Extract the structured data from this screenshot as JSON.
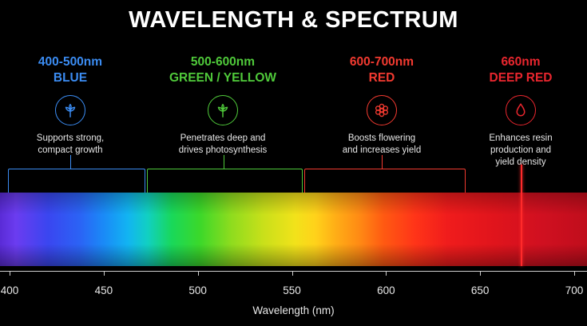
{
  "title": "WAVELENGTH & SPECTRUM",
  "bands": [
    {
      "range": "400-500nm",
      "name": "BLUE",
      "color": "#3b8cf2",
      "icon": "leaf-icon",
      "desc_line1": "Supports strong,",
      "desc_line2": "compact growth",
      "desc_line3": ""
    },
    {
      "range": "500-600nm",
      "name": "GREEN / YELLOW",
      "color": "#4fc93a",
      "icon": "leaf-icon",
      "desc_line1": "Penetrates deep and",
      "desc_line2": "drives photosynthesis",
      "desc_line3": ""
    },
    {
      "range": "600-700nm",
      "name": "RED",
      "color": "#f23a30",
      "icon": "flower-icon",
      "desc_line1": "Boosts flowering",
      "desc_line2": "and increases yield",
      "desc_line3": ""
    },
    {
      "range": "660nm",
      "name": "DEEP RED",
      "color": "#e8262e",
      "icon": "droplet-icon",
      "desc_line1": "Enhances resin",
      "desc_line2": "production and",
      "desc_line3": "yield density"
    }
  ],
  "axis": {
    "title": "Wavelength (nm)",
    "ticks": [
      "400",
      "450",
      "500",
      "550",
      "600",
      "650",
      "700"
    ]
  }
}
